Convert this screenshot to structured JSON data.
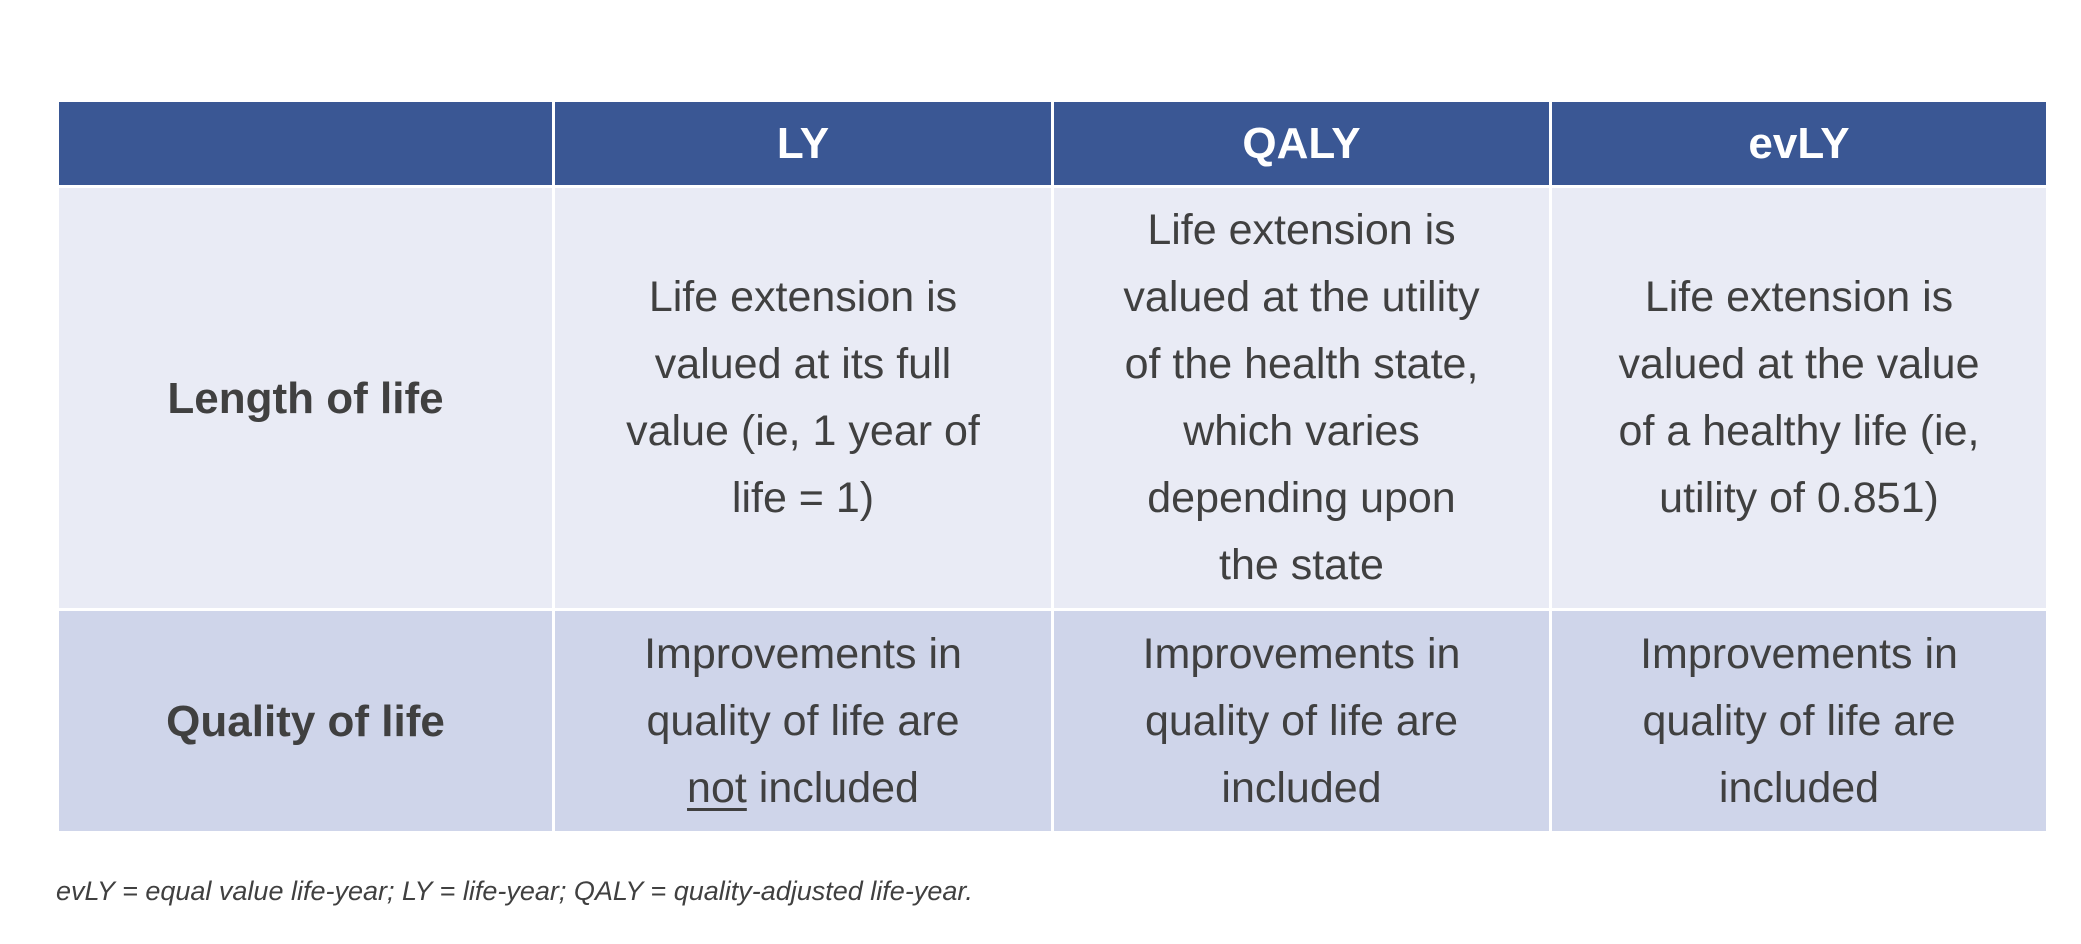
{
  "table": {
    "headers": [
      "",
      "LY",
      "QALY",
      "evLY"
    ],
    "rows": [
      {
        "label": "Length of life",
        "cells": [
          [
            "Life extension is",
            "valued at its full",
            "value (ie, 1 year of",
            "life = 1)"
          ],
          [
            "Life extension is",
            "valued at the utility",
            "of the health state,",
            "which varies",
            "depending upon",
            "the state"
          ],
          [
            "Life extension is",
            "valued at the value",
            "of a healthy life (ie,",
            "utility of 0.851)"
          ]
        ]
      },
      {
        "label": "Quality of life",
        "cells": [
          [
            "Improvements in",
            "quality of life are",
            "not",
            " included"
          ],
          [
            "Improvements in",
            "quality of life are",
            "included"
          ],
          [
            "Improvements in",
            "quality of life are",
            "included"
          ]
        ]
      }
    ]
  },
  "footnote": "evLY = equal value life-year; LY = life-year; QALY = quality-adjusted life-year.",
  "colors": {
    "header": "#3A5794",
    "row1": "#E9EBF5",
    "row2": "#CFD5EA",
    "text": "#404040"
  }
}
